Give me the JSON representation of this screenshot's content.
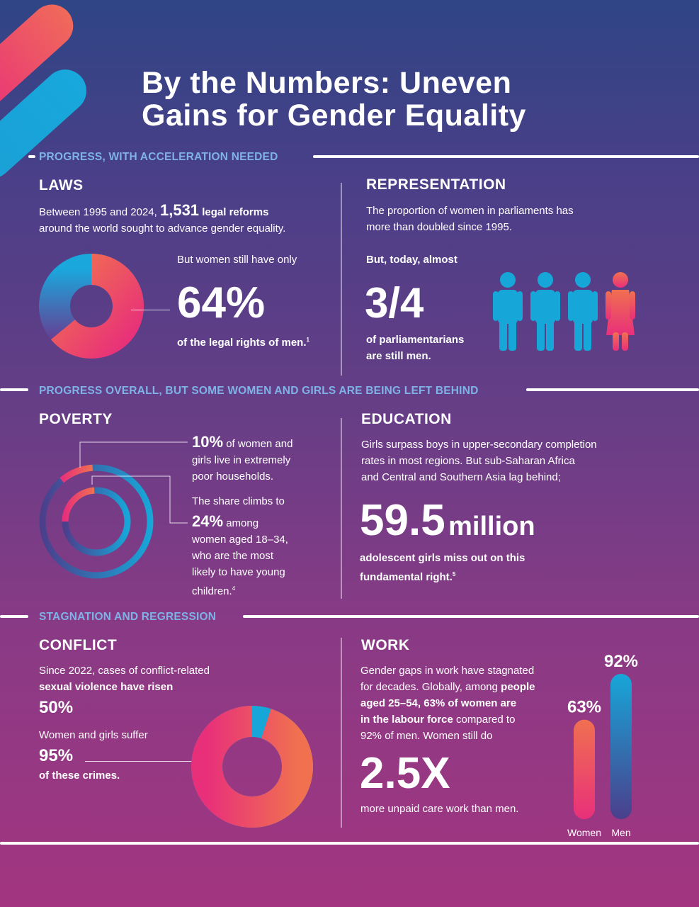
{
  "title_line1": "By the Numbers: Uneven",
  "title_line2": "Gains for Gender Equality",
  "sections": {
    "progress": "PROGRESS, WITH ACCELERATION NEEDED",
    "overall": "PROGRESS OVERALL, BUT SOME WOMEN AND GIRLS ARE BEING LEFT BEHIND",
    "stagnation": "STAGNATION AND REGRESSION"
  },
  "laws": {
    "heading": "LAWS",
    "text1": "Between 1995 and 2024,",
    "stat": "1,531",
    "text1_bold": "legal reforms",
    "text2": "around the world sought to advance gender equality.",
    "lead": "But women still have only",
    "percent": "64%",
    "caption": "of the legal rights of men.",
    "note": "1",
    "share": 0.64
  },
  "representation": {
    "heading": "REPRESENTATION",
    "text1": "The proportion of women in parliaments has",
    "text2": "more than doubled since 1995.",
    "lead": "But, today, almost",
    "fraction": "3/4",
    "caption1": "of parliamentarians",
    "caption2": "are still men."
  },
  "poverty": {
    "heading": "POVERTY",
    "stat1": "10%",
    "text1a": "of women and",
    "text1b": "girls live in extremely",
    "text1c": "poor households.",
    "lead": "The share climbs to",
    "stat2": "24%",
    "text2a": "among",
    "text2b": "women aged 18–34,",
    "text2c": "who are the most",
    "text2d": "likely to have young",
    "text2e": "children.",
    "note": "4",
    "outer_share": 0.1,
    "inner_share": 0.24
  },
  "education": {
    "heading": "EDUCATION",
    "text1": "Girls surpass boys in upper-secondary completion",
    "text2": "rates in most regions. But sub-Saharan Africa",
    "text3": "and Central and Southern Asia lag behind;",
    "stat": "59.5",
    "unit": "million",
    "caption1": "adolescent girls miss out on this",
    "caption2": "fundamental right.",
    "note": "5"
  },
  "conflict": {
    "heading": "CONFLICT",
    "text1": "Since 2022, cases of conflict-related",
    "text2": "sexual violence have risen",
    "stat1": "50%",
    "lead": "Women and girls suffer",
    "stat2": "95%",
    "caption": "of these crimes.",
    "share": 0.95
  },
  "work": {
    "heading": "WORK",
    "t1": "Gender gaps in work have stagnated",
    "t2a": "for decades.  Globally, among",
    "t2b": "people",
    "t3": "aged 25–54, 63% of women are",
    "t4a": "in the labour force",
    "t4b": "compared to",
    "t5": "92% of men. Women still do",
    "stat": "2.5X",
    "caption": "more unpaid care work than men.",
    "bars": [
      {
        "label": "Women",
        "value_text": "63%",
        "value": 63
      },
      {
        "label": "Men",
        "value_text": "92%",
        "value": 92
      }
    ]
  },
  "colors": {
    "accent_blue": "#17a6d8",
    "accent_pink": "#e8307a",
    "accent_orange": "#f07050",
    "section_head": "#7fb2e6"
  }
}
